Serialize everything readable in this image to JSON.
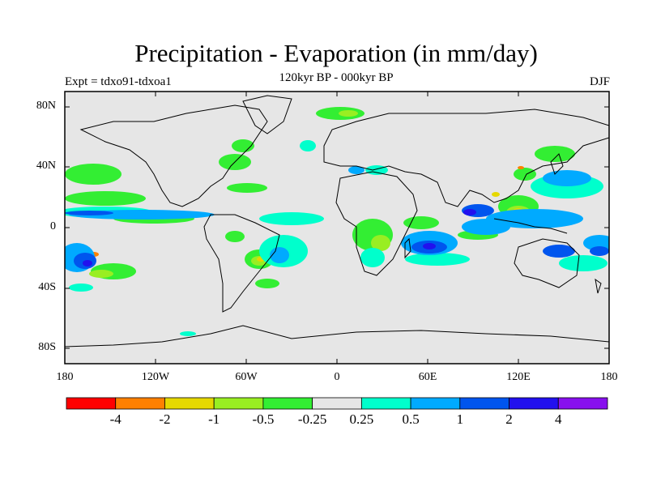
{
  "title": "Precipitation - Evaporation (in mm/day)",
  "subtitle": "120kyr BP - 000kyr BP",
  "left_label": "Expt = tdxo91-tdxoa1",
  "right_label": "DJF",
  "lat_labels": [
    "80N",
    "40N",
    "0",
    "40S",
    "80S"
  ],
  "lon_labels": [
    "180",
    "120W",
    "60W",
    "0",
    "60E",
    "120E",
    "180"
  ],
  "colorbar": {
    "colors": [
      "#ff0000",
      "#ff8000",
      "#e6d800",
      "#99ee22",
      "#33ee33",
      "#e6e6e6",
      "#00ffcc",
      "#00aaff",
      "#0055ee",
      "#2211ee",
      "#8811ee"
    ],
    "labels": [
      "-4",
      "-2",
      "-1",
      "-0.5",
      "-0.25",
      "0.25",
      "0.5",
      "1",
      "2",
      "4"
    ]
  },
  "colors": {
    "ocean_background": "#e6e6e6",
    "coastline": "#000000"
  }
}
